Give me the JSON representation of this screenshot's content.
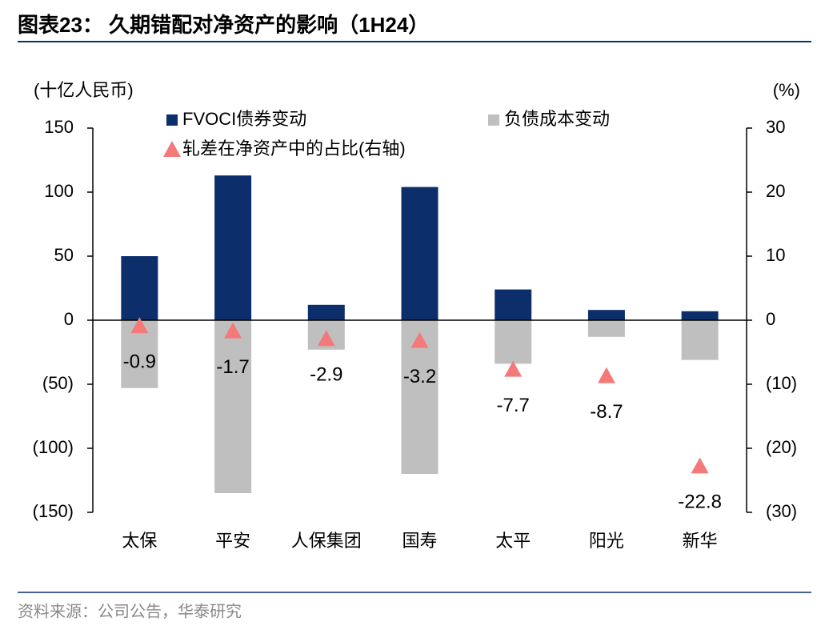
{
  "chart_data": {
    "type": "bar",
    "title": "图表23： 久期错配对净资产的影响（1H24）",
    "y_label": "(十亿人民币)",
    "y2_label": "(%)",
    "source": "资料来源：公司公告，华泰研究",
    "categories": [
      "太保",
      "平安",
      "人保集团",
      "国寿",
      "太平",
      "阳光",
      "新华"
    ],
    "series": [
      {
        "name": "FVOCI债券变动",
        "color": "#0c2f6b",
        "values": [
          50,
          113,
          12,
          104,
          24,
          8,
          7
        ]
      },
      {
        "name": "负债成本变动",
        "color": "#bfbfbf",
        "values": [
          -53,
          -135,
          -23,
          -120,
          -34,
          -13,
          -31
        ]
      },
      {
        "name": "轧差在净资产中的占比(右轴)",
        "color": "#f47a7a",
        "type": "scatter",
        "marker": "triangle",
        "axis": "y2",
        "values": [
          -0.9,
          -1.7,
          -2.9,
          -3.2,
          -7.7,
          -8.7,
          -22.8
        ]
      }
    ],
    "ylim": [
      -150,
      150
    ],
    "yticks": [
      {
        "value": -150,
        "label": "(150)"
      },
      {
        "value": -100,
        "label": "(100)"
      },
      {
        "value": -50,
        "label": "(50)"
      },
      0,
      50,
      100,
      150
    ],
    "y2lim": [
      -30,
      30
    ],
    "y2ticks": [
      {
        "value": -30,
        "label": "(30)"
      },
      {
        "value": -20,
        "label": "(20)"
      },
      {
        "value": -10,
        "label": "(10)"
      },
      0,
      10,
      20,
      30
    ],
    "grid": false
  }
}
